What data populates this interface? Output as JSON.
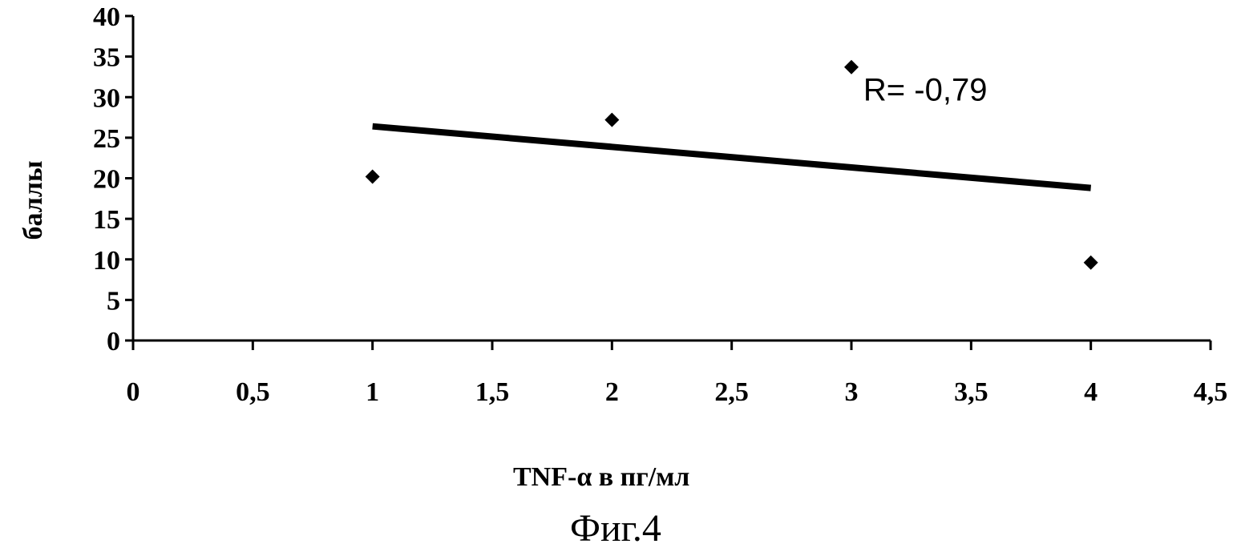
{
  "chart_data": {
    "type": "scatter",
    "title": "",
    "xlabel": "TNF-α в пг/мл",
    "ylabel": "баллы",
    "xlim": [
      0,
      4.5
    ],
    "ylim": [
      0,
      40
    ],
    "x_ticks": [
      0,
      0.5,
      1,
      1.5,
      2,
      2.5,
      3,
      3.5,
      4,
      4.5
    ],
    "x_tick_labels": [
      "0",
      "0,5",
      "1",
      "1,5",
      "2",
      "2,5",
      "3",
      "3,5",
      "4",
      "4,5"
    ],
    "y_ticks": [
      0,
      5,
      10,
      15,
      20,
      25,
      30,
      35,
      40
    ],
    "y_tick_labels": [
      "0",
      "5",
      "10",
      "15",
      "20",
      "25",
      "30",
      "35",
      "40"
    ],
    "grid": false,
    "legend": "none",
    "series": [
      {
        "marker": "diamond",
        "color": "#000000",
        "x": [
          1,
          2,
          3,
          4
        ],
        "y": [
          20.2,
          27.2,
          33.7,
          9.6
        ]
      }
    ],
    "trendline": {
      "x": [
        1,
        4
      ],
      "y": [
        26.4,
        18.8
      ],
      "color": "#000000"
    },
    "annotations": [
      {
        "text": "R= -0,79",
        "x": 3.05,
        "y": 29.6
      }
    ]
  },
  "figure": {
    "caption": "Фиг.4"
  }
}
